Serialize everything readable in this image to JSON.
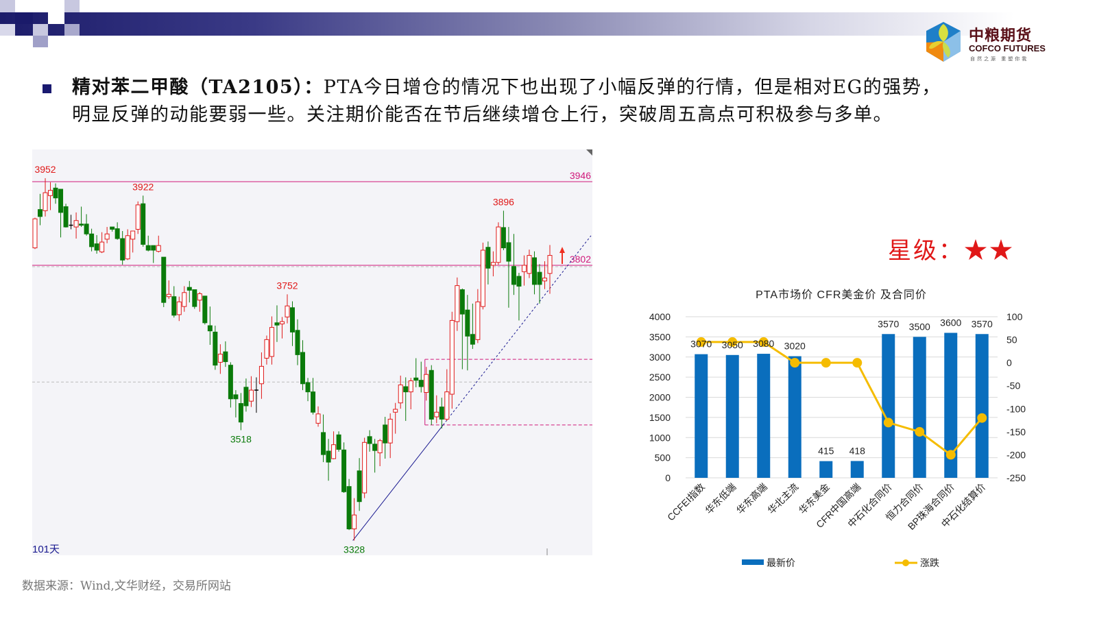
{
  "header": {
    "logo_cn": "中粮期货",
    "logo_en": "COFCO FUTURES",
    "logo_tagline": "自然之源 重塑你我"
  },
  "headline": {
    "bold": "精对苯二甲酸（TA2105）：",
    "line1": "PTA今日增仓的情况下也出现了小幅反弹的行情，但是相对EG的强势，",
    "line2": "明显反弹的动能要弱一些。关注期价能否在节后继续增仓上行，突破周五高点可积极参与多单。"
  },
  "rating": {
    "label": "星级：",
    "stars": "★★",
    "count": 2,
    "color": "#e01818"
  },
  "source": "数据来源：Wind,文华财经，交易所网站",
  "chart_data": [
    {
      "type": "candlestick",
      "period_label": "101天",
      "annotations": {
        "high1": "3952",
        "high2": "3922",
        "high3": "3752",
        "high4": "3896",
        "low1": "3518",
        "low2": "3328"
      },
      "hlines": [
        {
          "value": 3946,
          "label": "3946"
        },
        {
          "value": 3802,
          "label": "3802"
        }
      ],
      "box_levels": [
        3640,
        3527
      ],
      "grid_level": 3601,
      "colors": {
        "up": "#e01818",
        "down": "#0a7a0a",
        "line": "#d0187a",
        "trend": "#1a1a90",
        "bg": "#f4f4f8"
      },
      "ohlc": [
        [
          3832,
          3884,
          3830,
          3882
        ],
        [
          3898,
          3925,
          3871,
          3886
        ],
        [
          3896,
          3952,
          3886,
          3927
        ],
        [
          3922,
          3945,
          3897,
          3931
        ],
        [
          3935,
          3943,
          3908,
          3918
        ],
        [
          3933,
          3933,
          3850,
          3893
        ],
        [
          3903,
          3908,
          3867,
          3868
        ],
        [
          3871,
          3889,
          3864,
          3871
        ],
        [
          3868,
          3893,
          3848,
          3879
        ],
        [
          3873,
          3903,
          3868,
          3871
        ],
        [
          3873,
          3890,
          3853,
          3856
        ],
        [
          3856,
          3865,
          3826,
          3834
        ],
        [
          3839,
          3854,
          3822,
          3828
        ],
        [
          3825,
          3859,
          3823,
          3842
        ],
        [
          3847,
          3868,
          3840,
          3856
        ],
        [
          3868,
          3868,
          3860,
          3864
        ],
        [
          3865,
          3876,
          3846,
          3848
        ],
        [
          3848,
          3861,
          3803,
          3811
        ],
        [
          3813,
          3864,
          3811,
          3853
        ],
        [
          3847,
          3861,
          3824,
          3861
        ],
        [
          3864,
          3912,
          3856,
          3906
        ],
        [
          3908,
          3922,
          3834,
          3838
        ],
        [
          3836,
          3853,
          3826,
          3828
        ],
        [
          3836,
          3836,
          3806,
          3828
        ],
        [
          3826,
          3853,
          3824,
          3836
        ],
        [
          3816,
          3816,
          3730,
          3738
        ],
        [
          3748,
          3776,
          3744,
          3752
        ],
        [
          3748,
          3766,
          3712,
          3716
        ],
        [
          3717,
          3748,
          3706,
          3739
        ],
        [
          3731,
          3766,
          3722,
          3755
        ],
        [
          3764,
          3775,
          3738,
          3759
        ],
        [
          3760,
          3760,
          3727,
          3731
        ],
        [
          3742,
          3756,
          3722,
          3753
        ],
        [
          3749,
          3749,
          3700,
          3703
        ],
        [
          3698,
          3731,
          3665,
          3689
        ],
        [
          3687,
          3698,
          3622,
          3630
        ],
        [
          3635,
          3666,
          3615,
          3649
        ],
        [
          3653,
          3671,
          3627,
          3636
        ],
        [
          3630,
          3635,
          3557,
          3572
        ],
        [
          3579,
          3587,
          3540,
          3572
        ],
        [
          3564,
          3582,
          3518,
          3532
        ],
        [
          3592,
          3607,
          3550,
          3560
        ],
        [
          3568,
          3611,
          3558,
          3587
        ],
        [
          3587,
          3609,
          3548,
          3587
        ],
        [
          3598,
          3652,
          3572,
          3628
        ],
        [
          3642,
          3681,
          3631,
          3674
        ],
        [
          3645,
          3714,
          3631,
          3695
        ],
        [
          3703,
          3733,
          3670,
          3699
        ],
        [
          3701,
          3713,
          3676,
          3705
        ],
        [
          3713,
          3752,
          3702,
          3732
        ],
        [
          3729,
          3740,
          3663,
          3687
        ],
        [
          3690,
          3709,
          3630,
          3648
        ],
        [
          3652,
          3673,
          3587,
          3598
        ],
        [
          3600,
          3608,
          3568,
          3584
        ],
        [
          3584,
          3608,
          3545,
          3549
        ],
        [
          3530,
          3559,
          3524,
          3546
        ],
        [
          3514,
          3545,
          3463,
          3476
        ],
        [
          3482,
          3503,
          3431,
          3463
        ],
        [
          3469,
          3516,
          3468,
          3493
        ],
        [
          3510,
          3516,
          3481,
          3485
        ],
        [
          3484,
          3497,
          3410,
          3412
        ],
        [
          3421,
          3434,
          3346,
          3348
        ],
        [
          3348,
          3401,
          3328,
          3372
        ],
        [
          3448,
          3470,
          3379,
          3395
        ],
        [
          3410,
          3505,
          3401,
          3497
        ],
        [
          3507,
          3518,
          3481,
          3495
        ],
        [
          3494,
          3503,
          3445,
          3483
        ],
        [
          3479,
          3503,
          3456,
          3500
        ],
        [
          3527,
          3541,
          3469,
          3496
        ],
        [
          3496,
          3547,
          3470,
          3537
        ],
        [
          3549,
          3565,
          3512,
          3554
        ],
        [
          3565,
          3612,
          3555,
          3596
        ],
        [
          3593,
          3609,
          3534,
          3584
        ],
        [
          3584,
          3608,
          3554,
          3603
        ],
        [
          3608,
          3642,
          3592,
          3604
        ],
        [
          3604,
          3636,
          3583,
          3593
        ],
        [
          3583,
          3627,
          3569,
          3614
        ],
        [
          3621,
          3630,
          3527,
          3537
        ],
        [
          3541,
          3578,
          3530,
          3549
        ],
        [
          3558,
          3574,
          3521,
          3537
        ],
        [
          3537,
          3623,
          3534,
          3584
        ],
        [
          3580,
          3722,
          3555,
          3707
        ],
        [
          3705,
          3781,
          3689,
          3767
        ],
        [
          3760,
          3762,
          3623,
          3718
        ],
        [
          3725,
          3751,
          3621,
          3680
        ],
        [
          3683,
          3736,
          3658,
          3666
        ],
        [
          3674,
          3761,
          3668,
          3739
        ],
        [
          3731,
          3841,
          3726,
          3828
        ],
        [
          3833,
          3843,
          3769,
          3797
        ],
        [
          3802,
          3826,
          3783,
          3807
        ],
        [
          3807,
          3876,
          3803,
          3868
        ],
        [
          3867,
          3896,
          3828,
          3832
        ],
        [
          3841,
          3868,
          3729,
          3809
        ],
        [
          3800,
          3856,
          3751,
          3769
        ],
        [
          3783,
          3789,
          3707,
          3766
        ],
        [
          3791,
          3819,
          3767,
          3802
        ],
        [
          3788,
          3829,
          3780,
          3819
        ],
        [
          3815,
          3826,
          3752,
          3769
        ],
        [
          3790,
          3804,
          3736,
          3769
        ],
        [
          3775,
          3809,
          3761,
          3780
        ],
        [
          3788,
          3837,
          3753,
          3819
        ]
      ]
    },
    {
      "type": "bar+line",
      "title": "PTA市场价 CFR美金价 及合同价",
      "categories": [
        "CCFEI指数",
        "华东低端",
        "华东高端",
        "华北主流",
        "华东美金",
        "CFR中国高端",
        "中石化合同价",
        "恒力合同价",
        "BP珠海合同价",
        "中石化结算价"
      ],
      "series": [
        {
          "name": "最新价",
          "type": "bar",
          "axis": "left",
          "color": "#0a6ebd",
          "values": [
            3070,
            3050,
            3080,
            3020,
            415,
            418,
            3570,
            3500,
            3600,
            3570
          ]
        },
        {
          "name": "涨跌",
          "type": "line",
          "axis": "right",
          "color": "#f5bc00",
          "values": [
            45,
            45,
            45,
            0,
            0,
            0,
            -130,
            -150,
            -200,
            -120
          ]
        }
      ],
      "left_axis": {
        "min": 0,
        "max": 4000,
        "step": 500,
        "ticks": [
          "0",
          "500",
          "1000",
          "1500",
          "2000",
          "2500",
          "3000",
          "3500",
          "4000"
        ]
      },
      "right_axis": {
        "min": -250,
        "max": 100,
        "step": 50,
        "ticks": [
          "-250",
          "-200",
          "-150",
          "-100",
          "-50",
          "0",
          "50",
          "100"
        ]
      },
      "grid": true,
      "legend": "bottom"
    }
  ]
}
